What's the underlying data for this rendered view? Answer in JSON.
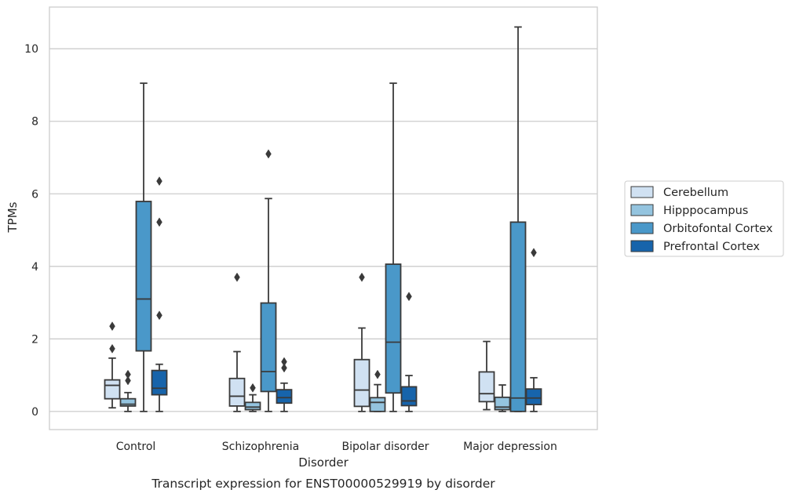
{
  "chart_data": {
    "type": "box",
    "xlabel": "Disorder",
    "ylabel": "TPMs",
    "caption": "Transcript expression for ENST00000529919 by disorder",
    "ylim": [
      -0.5,
      11.15
    ],
    "yticks": [
      0,
      2,
      4,
      6,
      8,
      10
    ],
    "grid": "horizontal",
    "legend_position": "right",
    "categories": [
      "Control",
      "Schizophrenia",
      "Bipolar disorder",
      "Major depression"
    ],
    "series": [
      {
        "name": "Cerebellum",
        "color": "#d0e1f2",
        "boxes": [
          {
            "whislo": 0.1,
            "q1": 0.35,
            "med": 0.72,
            "q3": 0.87,
            "whishi": 1.47,
            "fliers": [
              1.73,
              2.35
            ]
          },
          {
            "whislo": 0.0,
            "q1": 0.15,
            "med": 0.42,
            "q3": 0.91,
            "whishi": 1.65,
            "fliers": [
              3.7
            ]
          },
          {
            "whislo": 0.0,
            "q1": 0.14,
            "med": 0.59,
            "q3": 1.43,
            "whishi": 2.3,
            "fliers": [
              3.7
            ]
          },
          {
            "whislo": 0.05,
            "q1": 0.27,
            "med": 0.49,
            "q3": 1.09,
            "whishi": 1.93,
            "fliers": []
          }
        ]
      },
      {
        "name": "Hipppocampus",
        "color": "#94c4df",
        "boxes": [
          {
            "whislo": 0.0,
            "q1": 0.15,
            "med": 0.2,
            "q3": 0.35,
            "whishi": 0.52,
            "fliers": [
              0.85,
              1.02
            ]
          },
          {
            "whislo": 0.0,
            "q1": 0.05,
            "med": 0.12,
            "q3": 0.25,
            "whishi": 0.46,
            "fliers": [
              0.65
            ]
          },
          {
            "whislo": 0.0,
            "q1": 0.0,
            "med": 0.25,
            "q3": 0.38,
            "whishi": 0.74,
            "fliers": [
              1.02
            ]
          },
          {
            "whislo": 0.0,
            "q1": 0.05,
            "med": 0.12,
            "q3": 0.39,
            "whishi": 0.73,
            "fliers": []
          }
        ]
      },
      {
        "name": "Orbitofontal Cortex",
        "color": "#4a98c9",
        "boxes": [
          {
            "whislo": 0.0,
            "q1": 1.67,
            "med": 3.1,
            "q3": 5.79,
            "whishi": 9.05,
            "fliers": []
          },
          {
            "whislo": 0.0,
            "q1": 0.55,
            "med": 1.1,
            "q3": 2.99,
            "whishi": 5.87,
            "fliers": [
              7.1
            ]
          },
          {
            "whislo": 0.0,
            "q1": 0.51,
            "med": 1.91,
            "q3": 4.06,
            "whishi": 9.05,
            "fliers": []
          },
          {
            "whislo": 0.0,
            "q1": 0.0,
            "med": 0.37,
            "q3": 5.22,
            "whishi": 10.6,
            "fliers": []
          }
        ]
      },
      {
        "name": "Prefrontal Cortex",
        "color": "#1764ab",
        "boxes": [
          {
            "whislo": 0.0,
            "q1": 0.46,
            "med": 0.64,
            "q3": 1.13,
            "whishi": 1.3,
            "fliers": [
              2.65,
              5.22,
              6.35
            ]
          },
          {
            "whislo": 0.0,
            "q1": 0.23,
            "med": 0.38,
            "q3": 0.6,
            "whishi": 0.78,
            "fliers": [
              1.2,
              1.37
            ]
          },
          {
            "whislo": 0.0,
            "q1": 0.16,
            "med": 0.29,
            "q3": 0.68,
            "whishi": 0.99,
            "fliers": [
              3.17
            ]
          },
          {
            "whislo": 0.0,
            "q1": 0.19,
            "med": 0.37,
            "q3": 0.62,
            "whishi": 0.93,
            "fliers": [
              4.38
            ]
          }
        ]
      }
    ]
  }
}
